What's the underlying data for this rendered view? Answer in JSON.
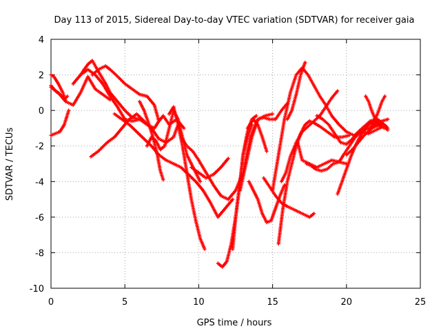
{
  "chart_data": {
    "type": "scatter",
    "title": "Day 113 of 2015, Sidereal Day-to-day VTEC variation (SDTVAR) for receiver gaia",
    "xlabel": "GPS time / hours",
    "ylabel": "SDTVAR / TECUs",
    "xlim": [
      0,
      25
    ],
    "ylim": [
      -10,
      4
    ],
    "xticks": [
      0,
      5,
      10,
      15,
      20,
      25
    ],
    "yticks": [
      -10,
      -8,
      -6,
      -4,
      -2,
      0,
      2,
      4
    ],
    "grid": true,
    "marker": "plus",
    "color": "#ff0000",
    "series": [
      {
        "x": [
          0.0,
          0.3,
          0.6,
          0.9,
          1.1
        ],
        "y": [
          1.4,
          1.1,
          0.9,
          0.6,
          0.8
        ]
      },
      {
        "x": [
          0.0,
          0.2,
          0.5,
          0.8,
          1.0
        ],
        "y": [
          2.0,
          1.9,
          1.5,
          1.0,
          0.5
        ]
      },
      {
        "x": [
          0.0,
          0.3,
          0.6,
          0.9,
          1.2
        ],
        "y": [
          -1.4,
          -1.3,
          -1.2,
          -0.8,
          0.0
        ]
      },
      {
        "x": [
          0.0,
          0.5,
          1.0,
          1.5,
          2.0,
          2.5,
          3.0,
          3.5,
          4.0
        ],
        "y": [
          1.3,
          1.0,
          0.5,
          0.3,
          1.0,
          1.9,
          1.2,
          0.9,
          0.6
        ]
      },
      {
        "x": [
          1.5,
          2.0,
          2.5,
          2.8,
          3.2,
          3.7,
          4.0,
          4.5,
          5.0,
          5.5,
          6.0
        ],
        "y": [
          1.5,
          2.0,
          2.6,
          2.8,
          2.2,
          1.5,
          1.0,
          0.5,
          0.0,
          -0.4,
          -0.5
        ]
      },
      {
        "x": [
          2.0,
          2.5,
          3.0,
          3.5,
          4.0,
          4.5,
          5.0,
          5.5,
          6.0,
          6.5,
          7.0,
          7.3,
          7.6,
          8.0,
          8.5,
          9.0
        ],
        "y": [
          2.0,
          2.3,
          2.0,
          1.5,
          0.8,
          0.2,
          -0.5,
          -0.6,
          -0.5,
          -0.8,
          -1.0,
          -0.6,
          -0.3,
          -0.8,
          -0.5,
          -1.0
        ]
      },
      {
        "x": [
          2.8,
          3.2,
          3.7,
          4.0,
          4.4,
          5.0,
          5.5,
          6.0,
          6.5,
          7.0,
          7.3
        ],
        "y": [
          2.0,
          2.3,
          2.5,
          2.3,
          2.0,
          1.5,
          1.2,
          0.9,
          0.8,
          0.3,
          -0.6
        ]
      },
      {
        "x": [
          2.7,
          3.2,
          3.8,
          4.3,
          4.8,
          5.3,
          5.8,
          6.3,
          6.8,
          7.3,
          7.8,
          8.3,
          8.6
        ],
        "y": [
          -2.6,
          -2.3,
          -1.8,
          -1.5,
          -1.0,
          -0.5,
          -0.2,
          -0.6,
          -1.0,
          -1.6,
          -1.8,
          -1.5,
          -0.8
        ]
      },
      {
        "x": [
          4.3,
          4.8,
          5.3,
          5.8,
          6.3,
          6.8,
          7.3,
          7.8,
          8.3,
          8.8,
          9.3,
          9.8,
          10.3,
          10.8,
          11.3,
          11.8,
          12.3
        ],
        "y": [
          -0.2,
          -0.5,
          -0.8,
          -1.2,
          -1.6,
          -2.0,
          -2.5,
          -2.8,
          -3.0,
          -3.2,
          -3.6,
          -4.0,
          -4.5,
          -5.2,
          -6.0,
          -5.5,
          -5.0
        ]
      },
      {
        "x": [
          6.5,
          6.8,
          7.1,
          7.4,
          7.7,
          8.0,
          8.3,
          8.6,
          8.9,
          9.2,
          9.5,
          9.8,
          10.1
        ],
        "y": [
          -2.0,
          -1.5,
          -1.7,
          -2.2,
          -2.0,
          -1.0,
          0.0,
          -0.5,
          -1.5,
          -2.5,
          -3.0,
          -3.5,
          -4.0
        ]
      },
      {
        "x": [
          6.0,
          6.3,
          6.6,
          6.9,
          7.2,
          7.4,
          7.6
        ],
        "y": [
          0.5,
          0.0,
          -0.7,
          -1.5,
          -2.5,
          -3.4,
          -3.9
        ]
      },
      {
        "x": [
          8.0,
          8.3,
          8.6,
          8.9,
          9.2,
          9.5,
          9.8,
          10.1,
          10.4
        ],
        "y": [
          -0.2,
          0.2,
          -0.8,
          -2.0,
          -3.5,
          -5.0,
          -6.2,
          -7.2,
          -7.8
        ]
      },
      {
        "x": [
          8.8,
          9.2,
          9.6,
          10.0,
          10.5,
          11.0,
          11.5,
          12.0,
          12.5,
          13.0,
          13.5,
          14.0,
          14.5,
          15.0
        ],
        "y": [
          -1.5,
          -2.0,
          -2.3,
          -2.8,
          -3.5,
          -4.2,
          -4.8,
          -5.0,
          -4.5,
          -3.5,
          -1.5,
          -0.5,
          -0.3,
          -0.2
        ]
      },
      {
        "x": [
          9.5,
          10.0,
          10.5,
          11.0,
          11.5,
          12.0
        ],
        "y": [
          -3.2,
          -3.5,
          -3.8,
          -3.6,
          -3.2,
          -2.7
        ]
      },
      {
        "x": [
          11.3,
          11.6,
          11.9,
          12.2,
          12.5,
          12.8,
          13.0,
          13.3,
          13.6
        ],
        "y": [
          -8.6,
          -8.8,
          -8.5,
          -7.5,
          -6.0,
          -4.0,
          -2.5,
          -1.5,
          -0.8
        ]
      },
      {
        "x": [
          12.3,
          12.5,
          12.8,
          13.0,
          13.3,
          13.6,
          13.9
        ],
        "y": [
          -7.8,
          -6.0,
          -4.0,
          -2.5,
          -1.2,
          -0.5,
          -0.3
        ]
      },
      {
        "x": [
          12.8,
          13.2,
          13.6,
          14.0,
          14.4,
          14.8,
          15.2,
          15.6,
          16.0
        ],
        "y": [
          -4.5,
          -3.0,
          -1.5,
          -0.5,
          -0.4,
          -0.5,
          -0.5,
          0.0,
          0.4
        ]
      },
      {
        "x": [
          13.3,
          13.7,
          14.0,
          14.3,
          14.6
        ],
        "y": [
          -1.0,
          -0.5,
          -0.8,
          -1.5,
          -2.3
        ]
      },
      {
        "x": [
          13.4,
          13.7,
          14.0,
          14.3,
          14.6,
          14.9,
          15.2,
          15.5,
          15.8
        ],
        "y": [
          -4.0,
          -4.5,
          -5.0,
          -5.8,
          -6.3,
          -6.2,
          -5.5,
          -4.8,
          -4.2
        ]
      },
      {
        "x": [
          14.4,
          14.8,
          15.2,
          15.6,
          16.0,
          16.5,
          17.0,
          17.5,
          17.8
        ],
        "y": [
          -3.8,
          -4.3,
          -4.8,
          -5.2,
          -5.4,
          -5.6,
          -5.8,
          -6.0,
          -5.8
        ]
      },
      {
        "x": [
          15.4,
          15.7,
          16.0,
          16.3,
          16.6,
          16.9,
          17.2,
          17.5,
          17.8,
          18.2,
          18.7,
          19.2,
          19.7,
          20.2
        ],
        "y": [
          -7.5,
          -5.5,
          -4.0,
          -3.0,
          -2.0,
          -1.3,
          -0.8,
          -0.6,
          -0.7,
          -0.9,
          -1.2,
          -1.5,
          -1.5,
          -1.4
        ]
      },
      {
        "x": [
          15.0,
          15.4,
          15.8,
          16.2,
          16.6,
          17.0,
          17.4,
          17.8,
          18.2,
          18.6,
          19.0,
          19.5,
          20.0,
          20.5,
          21.0,
          21.5,
          22.0,
          22.5
        ],
        "y": [
          -4.5,
          -2.5,
          -0.5,
          1.0,
          2.0,
          2.4,
          2.0,
          1.4,
          0.8,
          0.3,
          -0.3,
          -0.8,
          -1.2,
          -1.4,
          -1.2,
          -1.0,
          -0.9,
          -0.8
        ]
      },
      {
        "x": [
          16.0,
          16.3,
          16.6,
          16.9,
          17.2
        ],
        "y": [
          -0.5,
          0.0,
          0.9,
          2.0,
          2.7
        ]
      },
      {
        "x": [
          15.6,
          15.9,
          16.2,
          16.6,
          17.0,
          17.4,
          17.8,
          18.2,
          18.6,
          19.0,
          19.4
        ],
        "y": [
          -4.0,
          -3.5,
          -2.6,
          -1.8,
          -1.2,
          -0.9,
          -0.6,
          -0.3,
          0.2,
          0.7,
          1.1
        ]
      },
      {
        "x": [
          16.7,
          17.0,
          17.5,
          18.0,
          18.5,
          19.0,
          19.5,
          20.0
        ],
        "y": [
          -1.8,
          -2.8,
          -3.0,
          -3.2,
          -3.0,
          -2.8,
          -2.9,
          -3.0
        ]
      },
      {
        "x": [
          17.3,
          17.6,
          17.9,
          18.3,
          18.7,
          19.1,
          19.5,
          19.8,
          20.2,
          20.6,
          21.0,
          21.5,
          22.0,
          22.5
        ],
        "y": [
          -3.0,
          -3.1,
          -3.3,
          -3.4,
          -3.3,
          -3.0,
          -2.9,
          -2.5,
          -2.0,
          -1.5,
          -1.2,
          -1.3,
          -1.1,
          -0.9
        ]
      },
      {
        "x": [
          18.0,
          18.4,
          18.8,
          19.2,
          19.6,
          20.0,
          20.4,
          20.8,
          21.2,
          21.6,
          22.0,
          22.4,
          22.8
        ],
        "y": [
          -0.3,
          -0.5,
          -0.8,
          -1.3,
          -1.8,
          -1.9,
          -1.6,
          -1.2,
          -0.9,
          -0.6,
          -0.5,
          -0.7,
          -1.0
        ]
      },
      {
        "x": [
          19.4,
          19.7,
          20.0,
          20.3,
          20.6,
          20.9,
          21.2,
          21.5,
          21.8,
          22.1,
          22.4
        ],
        "y": [
          -4.7,
          -4.0,
          -3.3,
          -2.6,
          -2.0,
          -1.5,
          -1.1,
          -0.8,
          -0.6,
          -0.5,
          -0.8
        ]
      },
      {
        "x": [
          20.0,
          20.4,
          20.8,
          21.2,
          21.6,
          22.0,
          22.4,
          22.8
        ],
        "y": [
          -2.5,
          -2.2,
          -1.8,
          -1.4,
          -1.1,
          -0.8,
          -0.6,
          -0.5
        ]
      },
      {
        "x": [
          21.3,
          21.5,
          21.7,
          22.0,
          22.3,
          22.6,
          22.8
        ],
        "y": [
          0.8,
          0.5,
          0.0,
          -0.6,
          -0.9,
          -1.0,
          -1.1
        ]
      },
      {
        "x": [
          21.5,
          21.8,
          22.1,
          22.4,
          22.6
        ],
        "y": [
          -1.2,
          -0.7,
          -0.2,
          0.5,
          0.8
        ]
      },
      {
        "x": [
          21.8,
          22.1,
          22.4,
          22.7
        ],
        "y": [
          -0.8,
          -0.5,
          -0.7,
          -0.9
        ]
      }
    ]
  }
}
